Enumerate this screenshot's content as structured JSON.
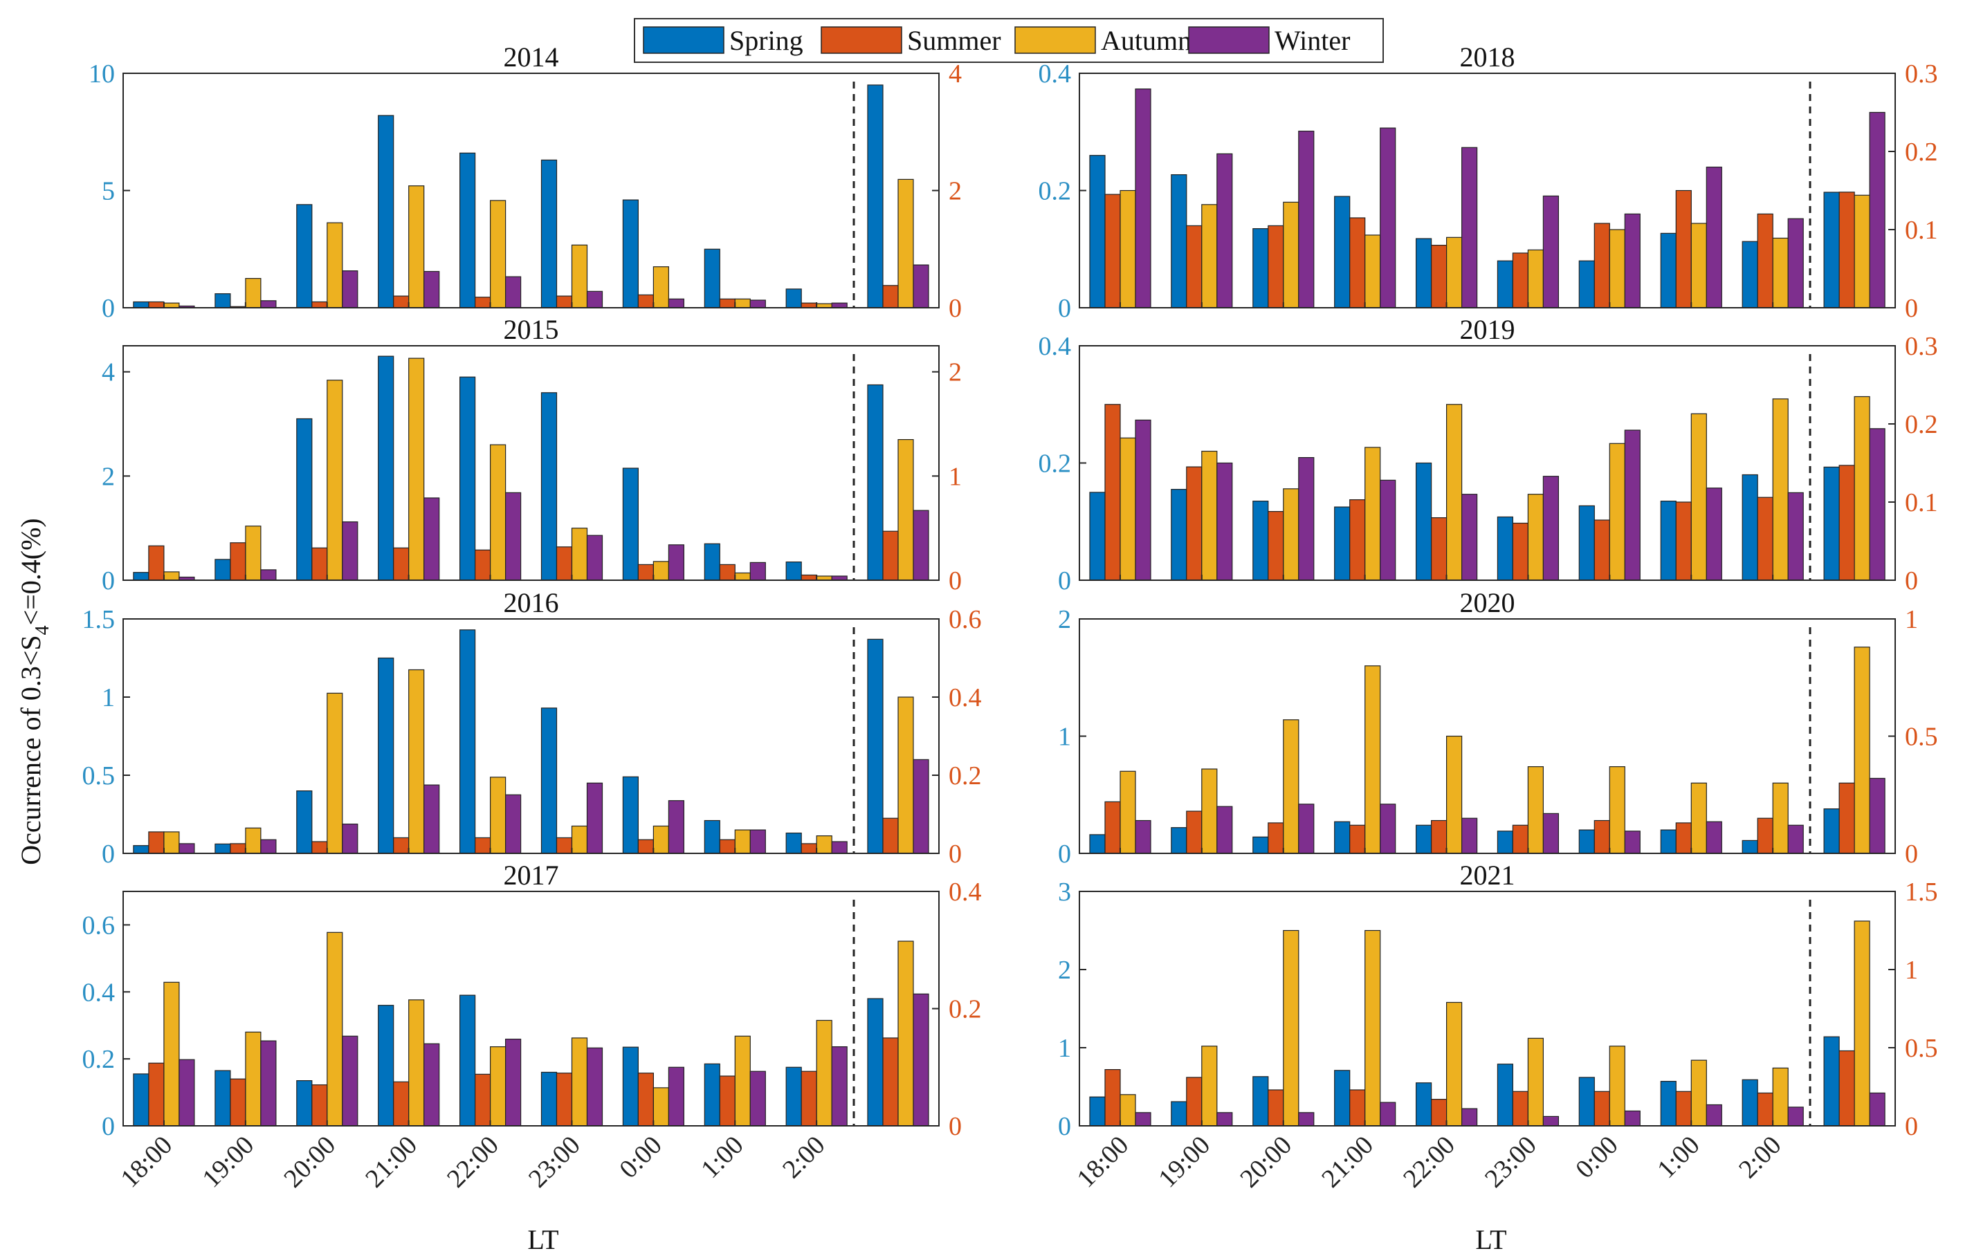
{
  "figure": {
    "ylabel_prefix": "Occurrence of 0.3<S",
    "ylabel_sub": "4",
    "ylabel_suffix": "<=0.4(%)",
    "xlabel": "LT",
    "x_tick_labels": [
      "18:00",
      "19:00",
      "20:00",
      "21:00",
      "22:00",
      "23:00",
      "0:00",
      "1:00",
      "2:00"
    ],
    "colors": {
      "Spring": "#0072BD",
      "Summer": "#D95319",
      "Autumn": "#EDB120",
      "Winter": "#7E2F8E",
      "left_axis": "#2a8fc4",
      "right_axis": "#D95319"
    }
  },
  "legend": {
    "entries": [
      {
        "name": "Spring"
      },
      {
        "name": "Summer"
      },
      {
        "name": "Autumn"
      },
      {
        "name": "Winter"
      }
    ]
  },
  "chart_data": [
    {
      "type": "bar",
      "title": "2014",
      "left_series": "Spring",
      "left_ylim": [
        0,
        10
      ],
      "left_ticks": [
        "0",
        "5",
        "10"
      ],
      "right_ylim": [
        0,
        4
      ],
      "right_ticks": [
        "0",
        "2",
        "4"
      ],
      "series": [
        {
          "name": "Spring",
          "values": [
            0.25,
            0.6,
            4.4,
            8.2,
            6.6,
            6.3,
            4.6,
            2.5,
            0.8,
            9.5
          ]
        },
        {
          "name": "Summer",
          "values": [
            0.1,
            0.02,
            0.1,
            0.2,
            0.18,
            0.2,
            0.22,
            0.15,
            0.08,
            0.38
          ]
        },
        {
          "name": "Autumn",
          "values": [
            0.08,
            0.5,
            1.45,
            2.08,
            1.83,
            1.07,
            0.7,
            0.15,
            0.07,
            2.19
          ]
        },
        {
          "name": "Winter",
          "values": [
            0.03,
            0.12,
            0.63,
            0.62,
            0.53,
            0.28,
            0.15,
            0.13,
            0.08,
            0.73
          ]
        }
      ]
    },
    {
      "type": "bar",
      "title": "2015",
      "left_series": "Spring",
      "left_ylim": [
        0,
        4.5
      ],
      "left_ticks": [
        "0",
        "2",
        "4"
      ],
      "right_ylim": [
        0,
        2.25
      ],
      "right_ticks": [
        "0",
        "1",
        "2"
      ],
      "series": [
        {
          "name": "Spring",
          "values": [
            0.15,
            0.4,
            3.1,
            4.3,
            3.9,
            3.6,
            2.15,
            0.7,
            0.35,
            3.75
          ]
        },
        {
          "name": "Summer",
          "values": [
            0.33,
            0.36,
            0.31,
            0.31,
            0.29,
            0.32,
            0.15,
            0.15,
            0.05,
            0.47
          ]
        },
        {
          "name": "Autumn",
          "values": [
            0.08,
            0.52,
            1.92,
            2.13,
            1.3,
            0.5,
            0.18,
            0.07,
            0.04,
            1.35
          ]
        },
        {
          "name": "Winter",
          "values": [
            0.03,
            0.1,
            0.56,
            0.79,
            0.84,
            0.43,
            0.34,
            0.17,
            0.04,
            0.67
          ]
        }
      ]
    },
    {
      "type": "bar",
      "title": "2016",
      "left_series": "Spring",
      "left_ylim": [
        0,
        1.5
      ],
      "left_ticks": [
        "0",
        "0.5",
        "1",
        "1.5"
      ],
      "right_ylim": [
        0,
        0.6
      ],
      "right_ticks": [
        "0",
        "0.2",
        "0.4",
        "0.6"
      ],
      "series": [
        {
          "name": "Spring",
          "values": [
            0.05,
            0.06,
            0.4,
            1.25,
            1.43,
            0.93,
            0.49,
            0.21,
            0.13,
            1.37
          ]
        },
        {
          "name": "Summer",
          "values": [
            0.055,
            0.025,
            0.03,
            0.04,
            0.04,
            0.04,
            0.035,
            0.035,
            0.025,
            0.09
          ]
        },
        {
          "name": "Autumn",
          "values": [
            0.055,
            0.065,
            0.41,
            0.47,
            0.195,
            0.07,
            0.07,
            0.06,
            0.045,
            0.4
          ]
        },
        {
          "name": "Winter",
          "values": [
            0.025,
            0.035,
            0.075,
            0.175,
            0.15,
            0.18,
            0.135,
            0.06,
            0.03,
            0.24
          ]
        }
      ]
    },
    {
      "type": "bar",
      "title": "2017",
      "left_series": "Spring",
      "left_ylim": [
        0,
        0.7
      ],
      "left_ticks": [
        "0",
        "0.2",
        "0.4",
        "0.6"
      ],
      "right_ylim": [
        0,
        0.4
      ],
      "right_ticks": [
        "0",
        "0.2",
        "0.4"
      ],
      "series": [
        {
          "name": "Spring",
          "values": [
            0.155,
            0.165,
            0.135,
            0.36,
            0.39,
            0.16,
            0.235,
            0.185,
            0.175,
            0.38
          ]
        },
        {
          "name": "Summer",
          "values": [
            0.107,
            0.08,
            0.07,
            0.075,
            0.088,
            0.09,
            0.09,
            0.085,
            0.093,
            0.15
          ]
        },
        {
          "name": "Autumn",
          "values": [
            0.245,
            0.16,
            0.33,
            0.215,
            0.135,
            0.15,
            0.065,
            0.153,
            0.18,
            0.315
          ]
        },
        {
          "name": "Winter",
          "values": [
            0.113,
            0.145,
            0.153,
            0.14,
            0.148,
            0.133,
            0.1,
            0.093,
            0.135,
            0.225
          ]
        }
      ]
    },
    {
      "type": "bar",
      "title": "2018",
      "left_series": "Spring",
      "left_ylim": [
        0,
        0.4
      ],
      "left_ticks": [
        "0",
        "0.2",
        "0.4"
      ],
      "right_ylim": [
        0,
        0.3
      ],
      "right_ticks": [
        "0",
        "0.1",
        "0.2",
        "0.3"
      ],
      "series": [
        {
          "name": "Spring",
          "values": [
            0.26,
            0.227,
            0.135,
            0.19,
            0.118,
            0.08,
            0.08,
            0.127,
            0.113,
            0.197
          ]
        },
        {
          "name": "Summer",
          "values": [
            0.145,
            0.105,
            0.105,
            0.115,
            0.08,
            0.07,
            0.108,
            0.15,
            0.12,
            0.148
          ]
        },
        {
          "name": "Autumn",
          "values": [
            0.15,
            0.132,
            0.135,
            0.093,
            0.09,
            0.074,
            0.1,
            0.108,
            0.089,
            0.144
          ]
        },
        {
          "name": "Winter",
          "values": [
            0.28,
            0.197,
            0.226,
            0.23,
            0.205,
            0.143,
            0.12,
            0.18,
            0.114,
            0.25
          ]
        }
      ]
    },
    {
      "type": "bar",
      "title": "2019",
      "left_series": "Spring",
      "left_ylim": [
        0,
        0.4
      ],
      "left_ticks": [
        "0",
        "0.2",
        "0.4"
      ],
      "right_ylim": [
        0,
        0.3
      ],
      "right_ticks": [
        "0",
        "0.1",
        "0.2",
        "0.3"
      ],
      "series": [
        {
          "name": "Spring",
          "values": [
            0.15,
            0.155,
            0.135,
            0.125,
            0.2,
            0.108,
            0.127,
            0.135,
            0.18,
            0.193
          ]
        },
        {
          "name": "Summer",
          "values": [
            0.225,
            0.145,
            0.088,
            0.103,
            0.08,
            0.073,
            0.077,
            0.1,
            0.106,
            0.147
          ]
        },
        {
          "name": "Autumn",
          "values": [
            0.182,
            0.165,
            0.117,
            0.17,
            0.225,
            0.11,
            0.175,
            0.213,
            0.232,
            0.235
          ]
        },
        {
          "name": "Winter",
          "values": [
            0.205,
            0.15,
            0.157,
            0.128,
            0.11,
            0.133,
            0.192,
            0.118,
            0.112,
            0.194
          ]
        }
      ]
    },
    {
      "type": "bar",
      "title": "2020",
      "left_series": "Spring",
      "left_ylim": [
        0,
        2
      ],
      "left_ticks": [
        "0",
        "1",
        "2"
      ],
      "right_ylim": [
        0,
        1
      ],
      "right_ticks": [
        "0",
        "0.5",
        "1"
      ],
      "series": [
        {
          "name": "Spring",
          "values": [
            0.16,
            0.22,
            0.14,
            0.27,
            0.24,
            0.19,
            0.2,
            0.2,
            0.11,
            0.38
          ]
        },
        {
          "name": "Summer",
          "values": [
            0.22,
            0.18,
            0.13,
            0.12,
            0.14,
            0.12,
            0.14,
            0.13,
            0.15,
            0.3
          ]
        },
        {
          "name": "Autumn",
          "values": [
            0.35,
            0.36,
            0.57,
            0.8,
            0.5,
            0.37,
            0.37,
            0.3,
            0.3,
            0.88
          ]
        },
        {
          "name": "Winter",
          "values": [
            0.14,
            0.2,
            0.21,
            0.21,
            0.15,
            0.17,
            0.095,
            0.135,
            0.12,
            0.32
          ]
        }
      ]
    },
    {
      "type": "bar",
      "title": "2021",
      "left_series": "Spring",
      "left_ylim": [
        0,
        3
      ],
      "left_ticks": [
        "0",
        "1",
        "2",
        "3"
      ],
      "right_ylim": [
        0,
        1.5
      ],
      "right_ticks": [
        "0",
        "0.5",
        "1",
        "1.5"
      ],
      "series": [
        {
          "name": "Spring",
          "values": [
            0.37,
            0.31,
            0.63,
            0.71,
            0.55,
            0.79,
            0.62,
            0.57,
            0.59,
            1.14
          ]
        },
        {
          "name": "Summer",
          "values": [
            0.36,
            0.31,
            0.23,
            0.23,
            0.17,
            0.22,
            0.22,
            0.22,
            0.21,
            0.48
          ]
        },
        {
          "name": "Autumn",
          "values": [
            0.2,
            0.51,
            1.25,
            1.25,
            0.79,
            0.56,
            0.51,
            0.42,
            0.37,
            1.31
          ]
        },
        {
          "name": "Winter",
          "values": [
            0.085,
            0.085,
            0.085,
            0.15,
            0.11,
            0.06,
            0.095,
            0.135,
            0.12,
            0.21
          ]
        }
      ]
    }
  ]
}
